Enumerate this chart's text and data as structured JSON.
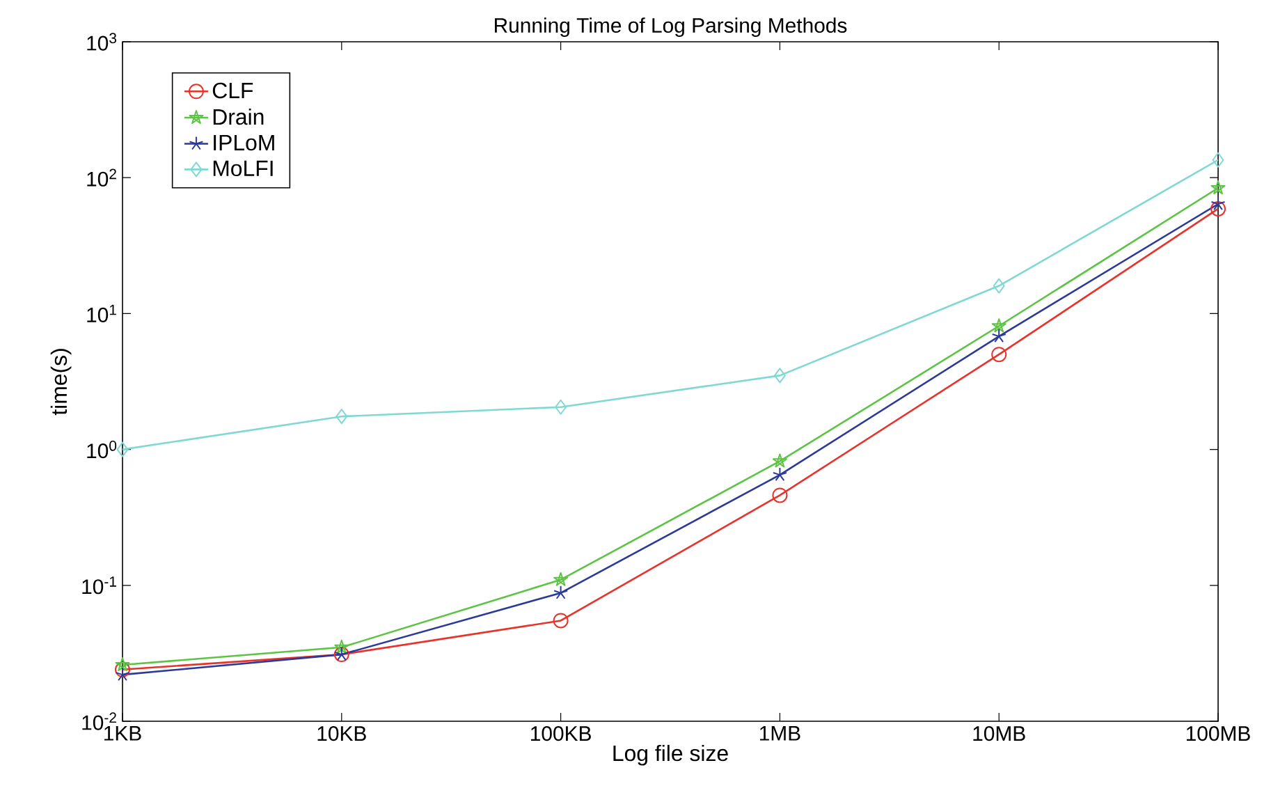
{
  "chart_data": {
    "type": "line",
    "title": "Running Time of Log Parsing Methods",
    "xlabel": "Log file size",
    "ylabel": "time(s)",
    "categories": [
      "1KB",
      "10KB",
      "100KB",
      "1MB",
      "10MB",
      "100MB"
    ],
    "series": [
      {
        "name": "CLF",
        "color": "#e8322a",
        "marker": "circle",
        "values": [
          0.024,
          0.031,
          0.055,
          0.46,
          5.0,
          59
        ]
      },
      {
        "name": "Drain",
        "color": "#5cc443",
        "marker": "star",
        "values": [
          0.026,
          0.035,
          0.11,
          0.82,
          8.1,
          84
        ]
      },
      {
        "name": "IPLoM",
        "color": "#2b3a9a",
        "marker": "cross",
        "values": [
          0.022,
          0.031,
          0.088,
          0.65,
          6.8,
          64
        ]
      },
      {
        "name": "MoLFI",
        "color": "#7fd9d3",
        "marker": "diamond",
        "values": [
          1.0,
          1.75,
          2.05,
          3.5,
          16,
          135
        ]
      }
    ],
    "log": "y",
    "ylim": [
      0.01,
      1000
    ],
    "yticks": [
      {
        "value": 0.01,
        "label": "10$^{-2}$"
      },
      {
        "value": 0.1,
        "label": "10$^{-1}$"
      },
      {
        "value": 1,
        "label": "10$^{0}$"
      },
      {
        "value": 10,
        "label": "10$^{1}$"
      },
      {
        "value": 100,
        "label": "10$^{2}$"
      },
      {
        "value": 1000,
        "label": "10$^{3}$"
      }
    ],
    "grid": false,
    "legend": "top left",
    "line_style": "solid"
  }
}
